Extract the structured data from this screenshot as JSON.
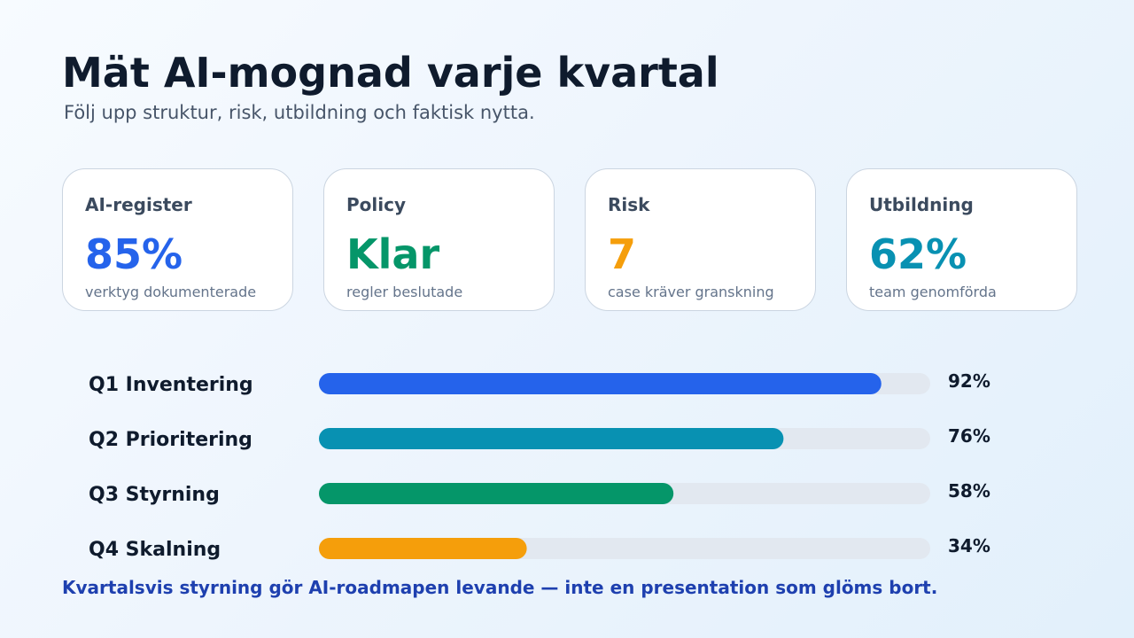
{
  "header": {
    "title": "Mät AI-mognad varje kvartal",
    "subtitle": "Följ upp struktur, risk, utbildning och faktisk nytta."
  },
  "cards": [
    {
      "label": "AI-register",
      "value": "85%",
      "desc": "verktyg dokumenterade",
      "color": "#2563eb"
    },
    {
      "label": "Policy",
      "value": "Klar",
      "desc": "regler beslutade",
      "color": "#059669"
    },
    {
      "label": "Risk",
      "value": "7",
      "desc": "case kräver granskning",
      "color": "#f59e0b"
    },
    {
      "label": "Utbildning",
      "value": "62%",
      "desc": "team genomförda",
      "color": "#0891b2"
    }
  ],
  "chart_data": {
    "type": "bar",
    "orientation": "horizontal",
    "categories": [
      "Q1 Inventering",
      "Q2 Prioritering",
      "Q3 Styrning",
      "Q4 Skalning"
    ],
    "values": [
      92,
      76,
      58,
      34
    ],
    "value_labels": [
      "92%",
      "76%",
      "58%",
      "34%"
    ],
    "colors": [
      "#2563eb",
      "#0891b2",
      "#059669",
      "#f59e0b"
    ],
    "track_color": "#e2e8f0",
    "xlim": [
      0,
      100
    ],
    "grid": false
  },
  "footer": {
    "text": "Kvartalsvis styrning gör AI-roadmapen levande — inte en presentation som glöms bort."
  }
}
